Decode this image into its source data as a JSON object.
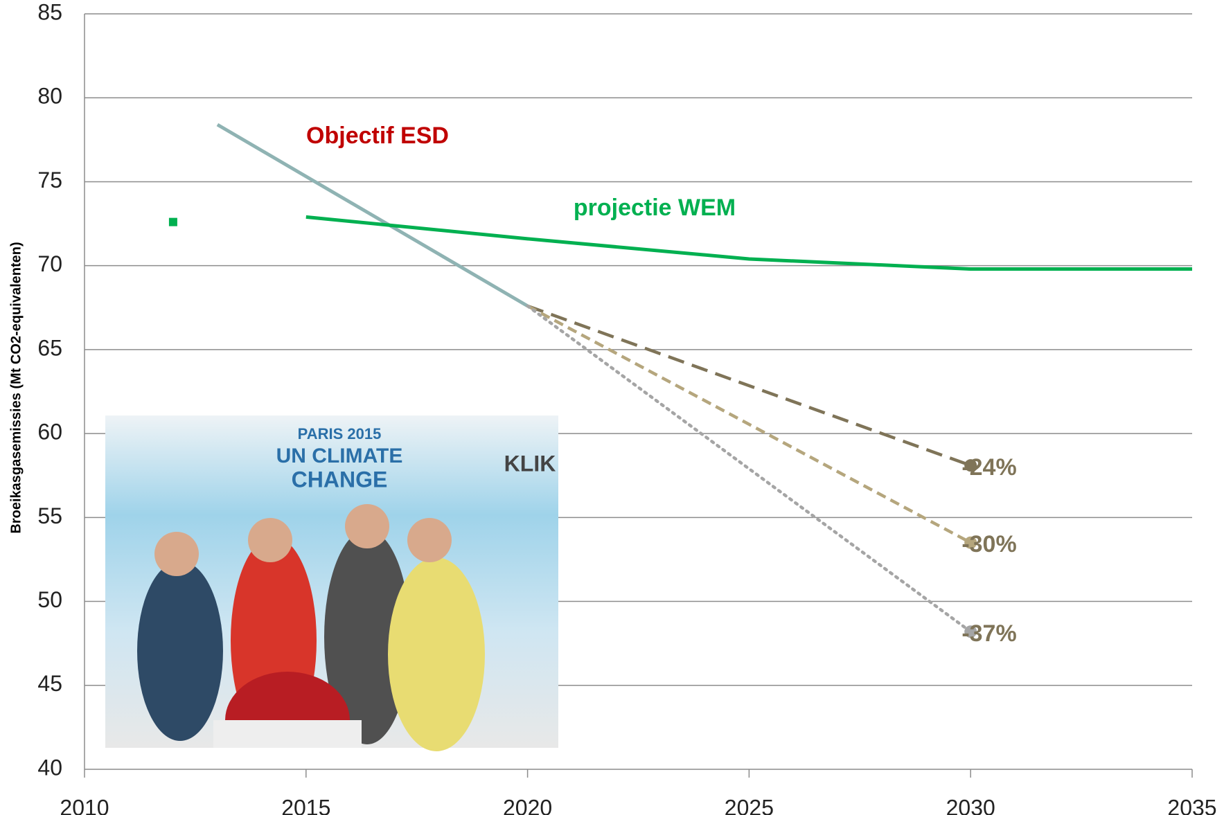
{
  "chart_data": {
    "type": "line",
    "y_label": "Broeikasgasemissies (Mt CO2-equivalenten)",
    "xlim": [
      2010,
      2035
    ],
    "xticks": [
      2010,
      2015,
      2020,
      2025,
      2030,
      2035
    ],
    "ylim": [
      40,
      85
    ],
    "yticks": [
      40,
      45,
      50,
      55,
      60,
      65,
      70,
      75,
      80,
      85
    ],
    "grid": true,
    "series": [
      {
        "name": "Objectif ESD",
        "color": "#8fb3b3",
        "label_color": "#c00000",
        "dash": "solid",
        "x": [
          2013,
          2020
        ],
        "values": [
          78.4,
          67.6
        ]
      },
      {
        "name": "projectie WEM",
        "color": "#00b050",
        "label_color": "#00b050",
        "dash": "solid",
        "x": [
          2015,
          2020,
          2025,
          2030,
          2035
        ],
        "values": [
          72.9,
          71.6,
          70.4,
          69.8,
          69.8
        ]
      },
      {
        "name": "-24%",
        "color": "#7f7458",
        "label_color": "#7f7458",
        "dash": "dashed",
        "end_marker": true,
        "x": [
          2020,
          2030
        ],
        "values": [
          67.6,
          58.1
        ]
      },
      {
        "name": "-30%",
        "color": "#b5a67d",
        "label_color": "#7f7458",
        "dash": "dashed-short",
        "end_marker": true,
        "x": [
          2020,
          2030
        ],
        "values": [
          67.6,
          53.5
        ]
      },
      {
        "name": "-37%",
        "color": "#a5a5a5",
        "label_color": "#7f7458",
        "dash": "dotted",
        "end_marker": true,
        "x": [
          2020,
          2030
        ],
        "values": [
          67.6,
          48.2
        ]
      }
    ],
    "markers": [
      {
        "x": 2012,
        "value": 72.6,
        "color": "#00b050"
      }
    ],
    "inset_photo": {
      "texts": [
        "PARIS 2015",
        "UN CLIMATE",
        "CHANGE",
        "KLIK"
      ]
    }
  }
}
